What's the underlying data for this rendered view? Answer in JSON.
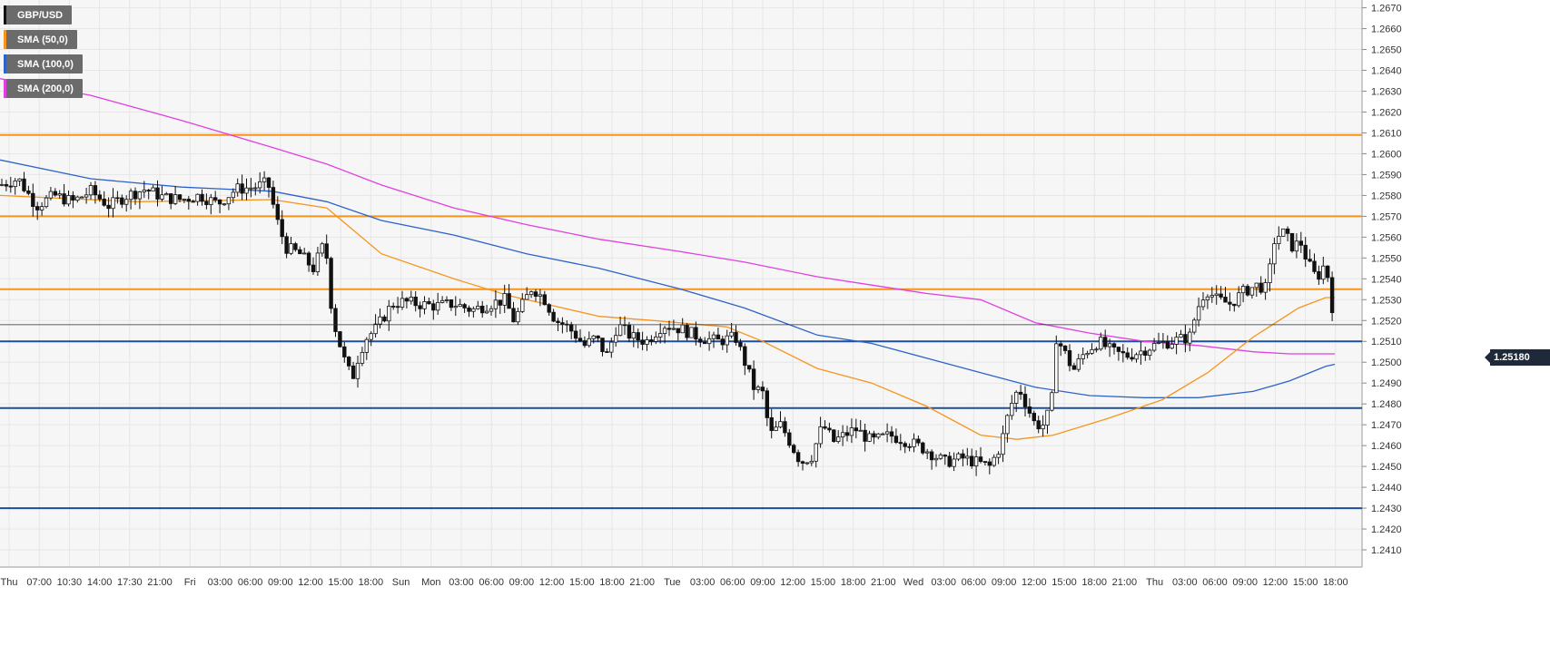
{
  "chart_data": {
    "type": "candlestick",
    "symbol": "GBP/USD",
    "ylim": [
      1.24,
      1.2672
    ],
    "y_ticks": [
      "1.2410",
      "1.2420",
      "1.2430",
      "1.2440",
      "1.2450",
      "1.2460",
      "1.2470",
      "1.2480",
      "1.2490",
      "1.2500",
      "1.2510",
      "1.2520",
      "1.2530",
      "1.2540",
      "1.2550",
      "1.2560",
      "1.2570",
      "1.2580",
      "1.2590",
      "1.2600",
      "1.2610",
      "1.2620",
      "1.2630",
      "1.2640",
      "1.2650",
      "1.2660",
      "1.2670"
    ],
    "x_ticks": [
      "Thu",
      "07:00",
      "10:30",
      "14:00",
      "17:30",
      "21:00",
      "Fri",
      "03:00",
      "06:00",
      "09:00",
      "12:00",
      "15:00",
      "18:00",
      "Sun",
      "Mon",
      "03:00",
      "06:00",
      "09:00",
      "12:00",
      "15:00",
      "18:00",
      "21:00",
      "Tue",
      "03:00",
      "06:00",
      "09:00",
      "12:00",
      "15:00",
      "18:00",
      "21:00",
      "Wed",
      "03:00",
      "06:00",
      "09:00",
      "12:00",
      "15:00",
      "18:00",
      "21:00",
      "Thu",
      "03:00",
      "06:00",
      "09:00",
      "12:00",
      "15:00",
      "18:00"
    ],
    "current_price": "1.25180",
    "legend": [
      {
        "label": "GBP/USD",
        "color": "#111111"
      },
      {
        "label": "SMA (50,0)",
        "color": "#f7941d"
      },
      {
        "label": "SMA (100,0)",
        "color": "#2d63c8"
      },
      {
        "label": "SMA (200,0)",
        "color": "#e040e0"
      }
    ],
    "resistance_levels": [
      1.2609,
      1.257,
      1.2535
    ],
    "support_levels": [
      1.251,
      1.2478,
      1.243
    ],
    "level_colors": {
      "resistance": "#f7941d",
      "support": "#1f4e99"
    },
    "close_path": [
      [
        0,
        1.2585
      ],
      [
        20,
        1.2588
      ],
      [
        40,
        1.2575
      ],
      [
        60,
        1.258
      ],
      [
        80,
        1.2577
      ],
      [
        100,
        1.2582
      ],
      [
        120,
        1.2575
      ],
      [
        140,
        1.258
      ],
      [
        160,
        1.2583
      ],
      [
        180,
        1.2579
      ],
      [
        200,
        1.2578
      ],
      [
        220,
        1.258
      ],
      [
        240,
        1.2576
      ],
      [
        260,
        1.2583
      ],
      [
        280,
        1.2584
      ],
      [
        295,
        1.2586
      ],
      [
        305,
        1.2568
      ],
      [
        315,
        1.2555
      ],
      [
        330,
        1.2552
      ],
      [
        345,
        1.2545
      ],
      [
        358,
        1.2558
      ],
      [
        366,
        1.2522
      ],
      [
        372,
        1.2512
      ],
      [
        380,
        1.25
      ],
      [
        388,
        1.2492
      ],
      [
        396,
        1.2505
      ],
      [
        404,
        1.2512
      ],
      [
        412,
        1.2515
      ],
      [
        420,
        1.252
      ],
      [
        432,
        1.2528
      ],
      [
        445,
        1.2529
      ],
      [
        460,
        1.2528
      ],
      [
        480,
        1.2527
      ],
      [
        500,
        1.2528
      ],
      [
        520,
        1.2525
      ],
      [
        540,
        1.2528
      ],
      [
        556,
        1.253
      ],
      [
        566,
        1.252
      ],
      [
        576,
        1.2528
      ],
      [
        586,
        1.2536
      ],
      [
        600,
        1.253
      ],
      [
        612,
        1.252
      ],
      [
        622,
        1.2518
      ],
      [
        632,
        1.2514
      ],
      [
        644,
        1.2508
      ],
      [
        656,
        1.2512
      ],
      [
        668,
        1.2503
      ],
      [
        680,
        1.2518
      ],
      [
        696,
        1.2512
      ],
      [
        712,
        1.251
      ],
      [
        730,
        1.2518
      ],
      [
        750,
        1.2516
      ],
      [
        770,
        1.2512
      ],
      [
        790,
        1.251
      ],
      [
        810,
        1.2512
      ],
      [
        822,
        1.2498
      ],
      [
        830,
        1.2488
      ],
      [
        840,
        1.2485
      ],
      [
        848,
        1.2465
      ],
      [
        860,
        1.247
      ],
      [
        872,
        1.246
      ],
      [
        882,
        1.2452
      ],
      [
        894,
        1.2455
      ],
      [
        906,
        1.247
      ],
      [
        918,
        1.2462
      ],
      [
        930,
        1.2465
      ],
      [
        942,
        1.2468
      ],
      [
        960,
        1.2462
      ],
      [
        980,
        1.2465
      ],
      [
        1000,
        1.2462
      ],
      [
        1020,
        1.2458
      ],
      [
        1040,
        1.2452
      ],
      [
        1060,
        1.2454
      ],
      [
        1075,
        1.2452
      ],
      [
        1090,
        1.245
      ],
      [
        1102,
        1.246
      ],
      [
        1112,
        1.2478
      ],
      [
        1122,
        1.2488
      ],
      [
        1130,
        1.248
      ],
      [
        1140,
        1.247
      ],
      [
        1150,
        1.247
      ],
      [
        1158,
        1.248
      ],
      [
        1163,
        1.2512
      ],
      [
        1172,
        1.2505
      ],
      [
        1182,
        1.2496
      ],
      [
        1195,
        1.2505
      ],
      [
        1210,
        1.251
      ],
      [
        1225,
        1.2505
      ],
      [
        1240,
        1.2503
      ],
      [
        1255,
        1.2505
      ],
      [
        1270,
        1.2508
      ],
      [
        1290,
        1.251
      ],
      [
        1310,
        1.2512
      ],
      [
        1318,
        1.2525
      ],
      [
        1328,
        1.2535
      ],
      [
        1340,
        1.253
      ],
      [
        1355,
        1.2528
      ],
      [
        1370,
        1.2534
      ],
      [
        1385,
        1.2537
      ],
      [
        1395,
        1.2535
      ],
      [
        1404,
        1.256
      ],
      [
        1414,
        1.2562
      ],
      [
        1424,
        1.2555
      ],
      [
        1432,
        1.2558
      ],
      [
        1440,
        1.2548
      ],
      [
        1450,
        1.254
      ],
      [
        1460,
        1.2548
      ],
      [
        1466,
        1.253
      ],
      [
        1470,
        1.2518
      ]
    ],
    "sma50_path": [
      [
        0,
        1.258
      ],
      [
        150,
        1.2577
      ],
      [
        300,
        1.2578
      ],
      [
        360,
        1.2574
      ],
      [
        420,
        1.2552
      ],
      [
        500,
        1.254
      ],
      [
        560,
        1.2532
      ],
      [
        600,
        1.2528
      ],
      [
        660,
        1.2522
      ],
      [
        720,
        1.252
      ],
      [
        800,
        1.2517
      ],
      [
        840,
        1.251
      ],
      [
        900,
        1.2497
      ],
      [
        960,
        1.249
      ],
      [
        1020,
        1.2479
      ],
      [
        1080,
        1.2465
      ],
      [
        1120,
        1.2463
      ],
      [
        1160,
        1.2465
      ],
      [
        1220,
        1.2473
      ],
      [
        1280,
        1.2482
      ],
      [
        1330,
        1.2495
      ],
      [
        1380,
        1.2512
      ],
      [
        1430,
        1.2526
      ],
      [
        1460,
        1.2531
      ],
      [
        1470,
        1.2531
      ]
    ],
    "sma100_path": [
      [
        0,
        1.2597
      ],
      [
        100,
        1.2588
      ],
      [
        200,
        1.2584
      ],
      [
        300,
        1.2582
      ],
      [
        360,
        1.2577
      ],
      [
        420,
        1.2568
      ],
      [
        500,
        1.2561
      ],
      [
        580,
        1.2552
      ],
      [
        660,
        1.2545
      ],
      [
        750,
        1.2535
      ],
      [
        820,
        1.2526
      ],
      [
        900,
        1.2513
      ],
      [
        960,
        1.2509
      ],
      [
        1020,
        1.2502
      ],
      [
        1080,
        1.2495
      ],
      [
        1140,
        1.2488
      ],
      [
        1200,
        1.2484
      ],
      [
        1260,
        1.2483
      ],
      [
        1320,
        1.2483
      ],
      [
        1380,
        1.2486
      ],
      [
        1420,
        1.2491
      ],
      [
        1460,
        1.2498
      ],
      [
        1470,
        1.2499
      ]
    ],
    "sma200_path": [
      [
        0,
        1.2636
      ],
      [
        100,
        1.2628
      ],
      [
        200,
        1.2616
      ],
      [
        300,
        1.2603
      ],
      [
        360,
        1.2595
      ],
      [
        420,
        1.2585
      ],
      [
        500,
        1.2574
      ],
      [
        580,
        1.2566
      ],
      [
        660,
        1.2559
      ],
      [
        750,
        1.2553
      ],
      [
        820,
        1.2548
      ],
      [
        900,
        1.2541
      ],
      [
        960,
        1.2537
      ],
      [
        1020,
        1.2533
      ],
      [
        1080,
        1.253
      ],
      [
        1140,
        1.2519
      ],
      [
        1200,
        1.2514
      ],
      [
        1260,
        1.251
      ],
      [
        1320,
        1.2508
      ],
      [
        1380,
        1.2505
      ],
      [
        1420,
        1.2504
      ],
      [
        1470,
        1.2504
      ]
    ]
  }
}
